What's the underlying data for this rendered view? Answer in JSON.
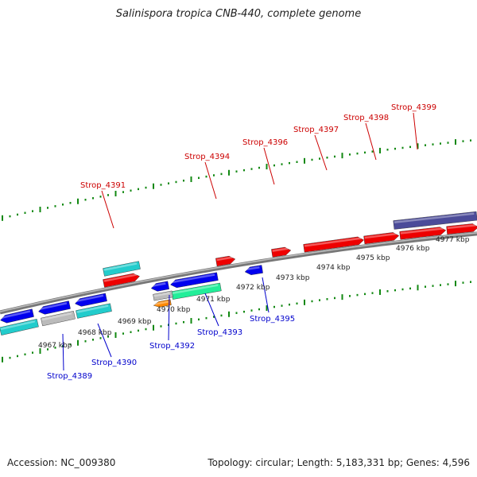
{
  "title": "Salinispora tropica CNB-440, complete genome",
  "footer": {
    "accession": "Accession: NC_009380",
    "topology": "Topology: circular; Length: 5,183,331 bp; Genes: 4,596"
  },
  "colors": {
    "backbone": "#888888",
    "tick": "#118811",
    "forward_label": "#cc0000",
    "reverse_label": "#0000cc"
  },
  "kbp_labels": [
    "4967 kbp",
    "4968 kbp",
    "4969 kbp",
    "4970 kbp",
    "4971 kbp",
    "4972 kbp",
    "4973 kbp",
    "4974 kbp",
    "4975 kbp",
    "4976 kbp",
    "4977 kbp"
  ],
  "gene_labels": {
    "forward": [
      "Strop_4391",
      "Strop_4394",
      "Strop_4396",
      "Strop_4397",
      "Strop_4398",
      "Strop_4399"
    ],
    "reverse": [
      "Strop_4389",
      "Strop_4390",
      "Strop_4392",
      "Strop_4393",
      "Strop_4395"
    ]
  }
}
